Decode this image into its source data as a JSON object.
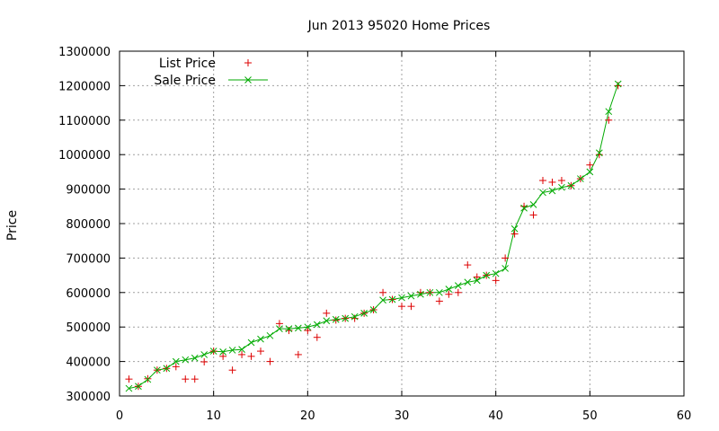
{
  "chart_data": {
    "type": "scatter",
    "title": "Jun 2013 95020 Home Prices",
    "xlabel": "",
    "ylabel": "Price",
    "xlim": [
      0,
      60
    ],
    "ylim": [
      300000,
      1300000
    ],
    "x_ticks": [
      0,
      10,
      20,
      30,
      40,
      50,
      60
    ],
    "y_ticks": [
      300000,
      400000,
      500000,
      600000,
      700000,
      800000,
      900000,
      1000000,
      1100000,
      1200000,
      1300000
    ],
    "x_tick_labels": [
      "0",
      "10",
      "20",
      "30",
      "40",
      "50",
      "60"
    ],
    "y_tick_labels": [
      "300000",
      "400000",
      "500000",
      "600000",
      "700000",
      "800000",
      "900000",
      "1000000",
      "1100000",
      "1200000",
      "1300000"
    ],
    "grid": true,
    "legend_position": "top-left",
    "x": [
      1,
      2,
      3,
      4,
      5,
      6,
      7,
      8,
      9,
      10,
      11,
      12,
      13,
      14,
      15,
      16,
      17,
      18,
      19,
      20,
      21,
      22,
      23,
      24,
      25,
      26,
      27,
      28,
      29,
      30,
      31,
      32,
      33,
      34,
      35,
      36,
      37,
      38,
      39,
      40,
      41,
      42,
      43,
      44,
      45,
      46,
      47,
      48,
      49,
      50,
      51,
      52,
      53
    ],
    "series": [
      {
        "name": "List Price",
        "marker": "plus",
        "color": "#dd0000",
        "values": [
          349000,
          328000,
          350000,
          375000,
          380000,
          385000,
          349000,
          349000,
          399000,
          430000,
          415000,
          375000,
          420000,
          415000,
          430000,
          400000,
          510000,
          490000,
          420000,
          490000,
          470000,
          540000,
          520000,
          525000,
          525000,
          540000,
          550000,
          600000,
          580000,
          560000,
          560000,
          600000,
          600000,
          575000,
          595000,
          600000,
          680000,
          645000,
          650000,
          635000,
          700000,
          770000,
          850000,
          825000,
          925000,
          920000,
          925000,
          910000,
          930000,
          970000,
          1000000,
          1100000,
          1200000
        ]
      },
      {
        "name": "Sale Price",
        "marker": "cross",
        "line": true,
        "color": "#00aa00",
        "values": [
          322000,
          328000,
          348000,
          375000,
          380000,
          400000,
          405000,
          410000,
          420000,
          430000,
          428000,
          433000,
          435000,
          455000,
          465000,
          475000,
          495000,
          495000,
          497000,
          500000,
          507000,
          518000,
          522000,
          525000,
          530000,
          540000,
          550000,
          578000,
          580000,
          585000,
          590000,
          595000,
          600000,
          600000,
          610000,
          620000,
          630000,
          635000,
          650000,
          655000,
          670000,
          785000,
          845000,
          855000,
          890000,
          895000,
          905000,
          910000,
          930000,
          950000,
          1005000,
          1125000,
          1205000
        ]
      }
    ]
  }
}
